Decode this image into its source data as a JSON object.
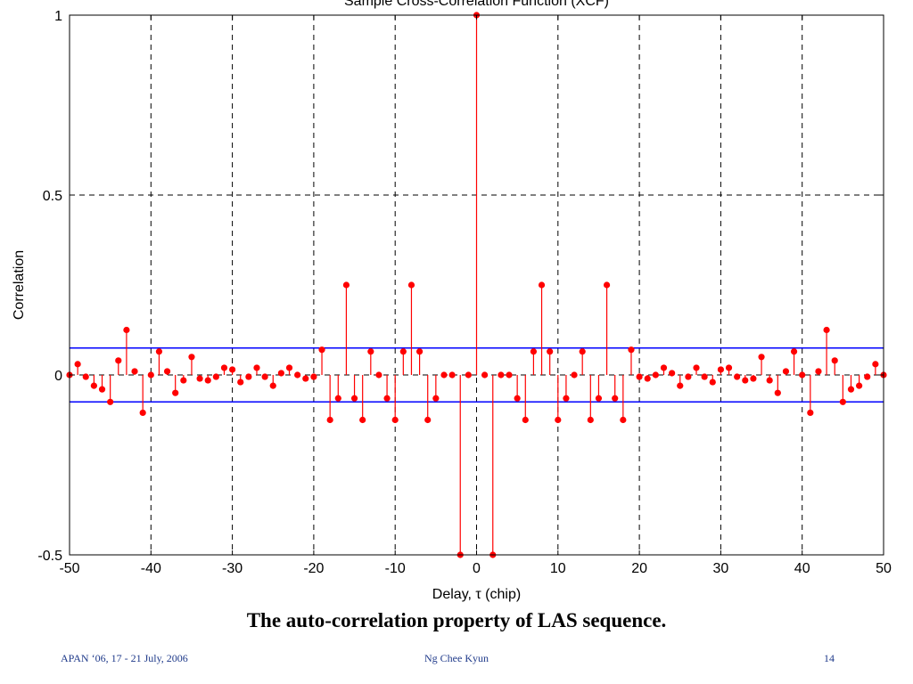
{
  "chart_data": {
    "type": "stem",
    "title": "Sample Cross-Correlation Function (XCF)",
    "xlabel": "Delay, τ (chip)",
    "ylabel": "Correlation",
    "xlim": [
      -50,
      50
    ],
    "ylim": [
      -0.5,
      1
    ],
    "xticks": [
      -50,
      -40,
      -30,
      -20,
      -10,
      0,
      10,
      20,
      30,
      40,
      50
    ],
    "yticks": [
      -0.5,
      0,
      0.5,
      1
    ],
    "ytick_labels": [
      "-0.5",
      "0",
      "0.5",
      "1"
    ],
    "grid": "dashed",
    "bounds": [
      0.075,
      -0.075
    ],
    "colors": {
      "stems": "#ff0000",
      "bounds": "#0000ff",
      "grid": "#000000"
    },
    "x": [
      -50,
      -49,
      -48,
      -47,
      -46,
      -45,
      -44,
      -43,
      -42,
      -41,
      -40,
      -39,
      -38,
      -37,
      -36,
      -35,
      -34,
      -33,
      -32,
      -31,
      -30,
      -29,
      -28,
      -27,
      -26,
      -25,
      -24,
      -23,
      -22,
      -21,
      -20,
      -19,
      -18,
      -17,
      -16,
      -15,
      -14,
      -13,
      -12,
      -11,
      -10,
      -9,
      -8,
      -7,
      -6,
      -5,
      -4,
      -3,
      -2,
      -1,
      0,
      1,
      2,
      3,
      4,
      5,
      6,
      7,
      8,
      9,
      10,
      11,
      12,
      13,
      14,
      15,
      16,
      17,
      18,
      19,
      20,
      21,
      22,
      23,
      24,
      25,
      26,
      27,
      28,
      29,
      30,
      31,
      32,
      33,
      34,
      35,
      36,
      37,
      38,
      39,
      40,
      41,
      42,
      43,
      44,
      45,
      46,
      47,
      48,
      49,
      50
    ],
    "y": [
      0,
      0.03,
      -0.005,
      -0.03,
      -0.04,
      -0.075,
      0.04,
      0.125,
      0.01,
      -0.105,
      0,
      0.065,
      0.01,
      -0.05,
      -0.015,
      0.05,
      -0.01,
      -0.015,
      -0.005,
      0.02,
      0.015,
      -0.02,
      -0.005,
      0.02,
      -0.005,
      -0.03,
      0.005,
      0.02,
      0,
      -0.01,
      -0.005,
      0.07,
      -0.125,
      -0.065,
      0.25,
      -0.065,
      -0.125,
      0.065,
      0,
      -0.065,
      -0.125,
      0.065,
      0.25,
      0.065,
      -0.125,
      -0.065,
      0,
      0,
      -0.5,
      0,
      1,
      0,
      -0.5,
      0,
      0,
      -0.065,
      -0.125,
      0.065,
      0.25,
      0.065,
      -0.125,
      -0.065,
      0,
      0.065,
      -0.125,
      -0.065,
      0.25,
      -0.065,
      -0.125,
      0.07,
      -0.005,
      -0.01,
      0,
      0.02,
      0.005,
      -0.03,
      -0.005,
      0.02,
      -0.005,
      -0.02,
      0.015,
      0.02,
      -0.005,
      -0.015,
      -0.01,
      0.05,
      -0.015,
      -0.05,
      0.01,
      0.065,
      0,
      -0.105,
      0.01,
      0.125,
      0.04,
      -0.075,
      -0.04,
      -0.03,
      -0.005,
      0.03,
      0
    ]
  },
  "caption": "The auto-correlation property of LAS sequence.",
  "footer": {
    "left": "APAN ‘06, 17 - 21 July, 2006",
    "center": "Ng Chee Kyun",
    "page": "14"
  }
}
